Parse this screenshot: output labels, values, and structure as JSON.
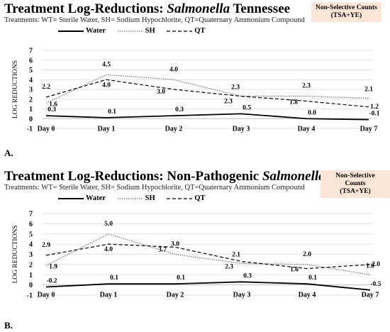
{
  "chart_data": [
    {
      "type": "line",
      "title_prefix": "Treatment Log-Reductions: ",
      "title_italic": "Salmonella",
      "title_suffix": " Tennessee",
      "subtitle": "Treatments: WT= Sterile Water, SH= Sodium Hypochlorite, QT=Quaternary Ammonium Compound",
      "badge_line1": "Non-Selective Counts",
      "badge_line2": "(TSA+YE)",
      "panel_label": "A.",
      "ylabel": "LOG REDUCTIONS",
      "ylim": [
        -1,
        7
      ],
      "yticks": [
        "-1",
        "0",
        "1",
        "2",
        "3",
        "4",
        "5",
        "6",
        "7"
      ],
      "categories": [
        "Day 0",
        "Day 1",
        "Day 2",
        "Day 3",
        "Day 4",
        "Day 7"
      ],
      "legend_placement": "top",
      "series": [
        {
          "name": "Water",
          "values": [
            0.3,
            0.1,
            0.3,
            0.5,
            0.0,
            -0.1
          ],
          "labels": [
            "0.3",
            "0.1",
            "0.3",
            "0.5",
            "0.0",
            "-0.1"
          ],
          "style": "solid"
        },
        {
          "name": "SH",
          "values": [
            1.6,
            4.5,
            4.0,
            2.3,
            2.3,
            2.1
          ],
          "labels": [
            "1.6",
            "4.5",
            "4.0",
            "2.3",
            "2.3",
            "2.1"
          ],
          "style": "dotted"
        },
        {
          "name": "QT",
          "values": [
            2.2,
            4.0,
            3.0,
            2.3,
            1.8,
            1.2
          ],
          "labels": [
            "2.2",
            "4.0",
            "3.0",
            "2.3",
            "1.8",
            "1.2"
          ],
          "style": "dashed"
        }
      ]
    },
    {
      "type": "line",
      "title_prefix": "Treatment Log-Reductions: Non-Pathogenic ",
      "title_italic": "Salmonella",
      "title_suffix": "",
      "subtitle": "Treatments: WT= Sterile Water, SH= Sodium Hypochlorite, QT=Quaternary Ammonium Compound",
      "badge_line1": "Non-Selective Counts",
      "badge_line2": "(TSA+YE)",
      "panel_label": "B.",
      "ylabel": "LOG REDUCTIONS",
      "ylim": [
        -1,
        7
      ],
      "yticks": [
        "-1",
        "0",
        "1",
        "2",
        "3",
        "4",
        "5",
        "6",
        "7"
      ],
      "categories": [
        "Day 0",
        "Day 1",
        "Day 2",
        "Day 3",
        "Day 4",
        "Day 7"
      ],
      "legend_placement": "top",
      "series": [
        {
          "name": "Water",
          "values": [
            -0.2,
            0.1,
            0.1,
            0.3,
            0.1,
            -0.5
          ],
          "labels": [
            "-0.2",
            "0.1",
            "0.1",
            "0.3",
            "0.1",
            "-0.5"
          ],
          "style": "solid"
        },
        {
          "name": "SH",
          "values": [
            1.9,
            5.0,
            3.0,
            2.1,
            2.0,
            1.0
          ],
          "labels": [
            "1.9",
            "5.0",
            "3.0",
            "2.1",
            "2.0",
            "1.0"
          ],
          "style": "dotted"
        },
        {
          "name": "QT",
          "values": [
            2.9,
            4.0,
            3.7,
            2.3,
            1.6,
            2.0
          ],
          "labels": [
            "2.9",
            "4.0",
            "3.7",
            "2.3",
            "1.6",
            "2.0"
          ],
          "style": "dashed"
        }
      ]
    }
  ]
}
